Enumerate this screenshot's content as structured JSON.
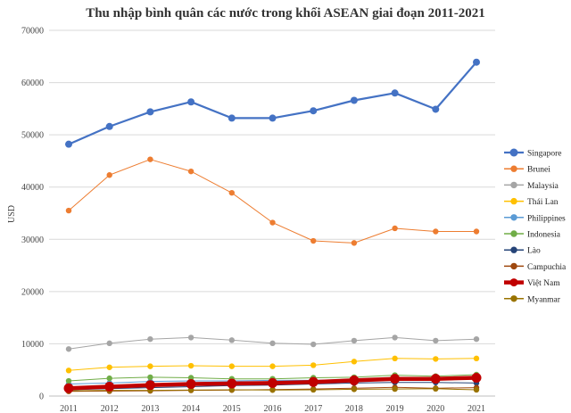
{
  "chart_data": {
    "type": "line",
    "title": "Thu nhập bình quân các nước trong khối ASEAN giai đoạn 2011-2021",
    "xlabel": "",
    "ylabel": "USD",
    "x": [
      "2011",
      "2012",
      "2013",
      "2014",
      "2015",
      "2016",
      "2017",
      "2018",
      "2019",
      "2020",
      "2021"
    ],
    "ylim": [
      0,
      70000
    ],
    "yticks": [
      "0",
      "10000",
      "20000",
      "30000",
      "40000",
      "50000",
      "60000",
      "70000"
    ],
    "grid": true,
    "legend_position": "right",
    "series": [
      {
        "name": "Singapore",
        "color": "#4472c4",
        "width": 2.2,
        "marker": 4,
        "values": [
          48200,
          51600,
          54400,
          56300,
          53200,
          53200,
          54600,
          56600,
          58000,
          54900,
          63900
        ]
      },
      {
        "name": "Brunei",
        "color": "#ed7d31",
        "width": 1,
        "marker": 3.2,
        "values": [
          35500,
          42300,
          45300,
          43000,
          38900,
          33200,
          29700,
          29300,
          32100,
          31500,
          31500
        ]
      },
      {
        "name": "Malaysia",
        "color": "#a5a5a5",
        "width": 1,
        "marker": 3.2,
        "values": [
          9000,
          10100,
          10900,
          11200,
          10700,
          10100,
          9900,
          10600,
          11200,
          10600,
          10900
        ]
      },
      {
        "name": "Thái Lan",
        "color": "#ffc000",
        "width": 1,
        "marker": 3.2,
        "values": [
          4900,
          5500,
          5700,
          5800,
          5700,
          5700,
          5900,
          6600,
          7200,
          7100,
          7200
        ]
      },
      {
        "name": "Philippines",
        "color": "#5b9bd5",
        "width": 1,
        "marker": 3.2,
        "values": [
          2300,
          2500,
          2800,
          2900,
          2900,
          3000,
          3000,
          3200,
          3400,
          3300,
          3500
        ]
      },
      {
        "name": "Indonesia",
        "color": "#70ad47",
        "width": 1,
        "marker": 3.2,
        "values": [
          2900,
          3400,
          3600,
          3500,
          3300,
          3300,
          3500,
          3600,
          4000,
          3800,
          4100
        ]
      },
      {
        "name": "Lào",
        "color": "#264478",
        "width": 1,
        "marker": 3.2,
        "values": [
          1200,
          1400,
          1600,
          1800,
          2000,
          2100,
          2300,
          2500,
          2600,
          2600,
          2500
        ]
      },
      {
        "name": "Campuchia",
        "color": "#9e480e",
        "width": 1,
        "marker": 3.2,
        "values": [
          900,
          950,
          1000,
          1100,
          1150,
          1250,
          1350,
          1500,
          1650,
          1500,
          1600
        ]
      },
      {
        "name": "Việt Nam",
        "color": "#c00000",
        "width": 4.5,
        "marker": 5.5,
        "values": [
          1500,
          1800,
          2100,
          2300,
          2400,
          2500,
          2700,
          3000,
          3300,
          3300,
          3500
        ]
      },
      {
        "name": "Myanmar",
        "color": "#997300",
        "width": 1,
        "marker": 3.2,
        "values": [
          1000,
          1100,
          1100,
          1150,
          1200,
          1150,
          1200,
          1300,
          1350,
          1400,
          1200
        ]
      }
    ]
  }
}
